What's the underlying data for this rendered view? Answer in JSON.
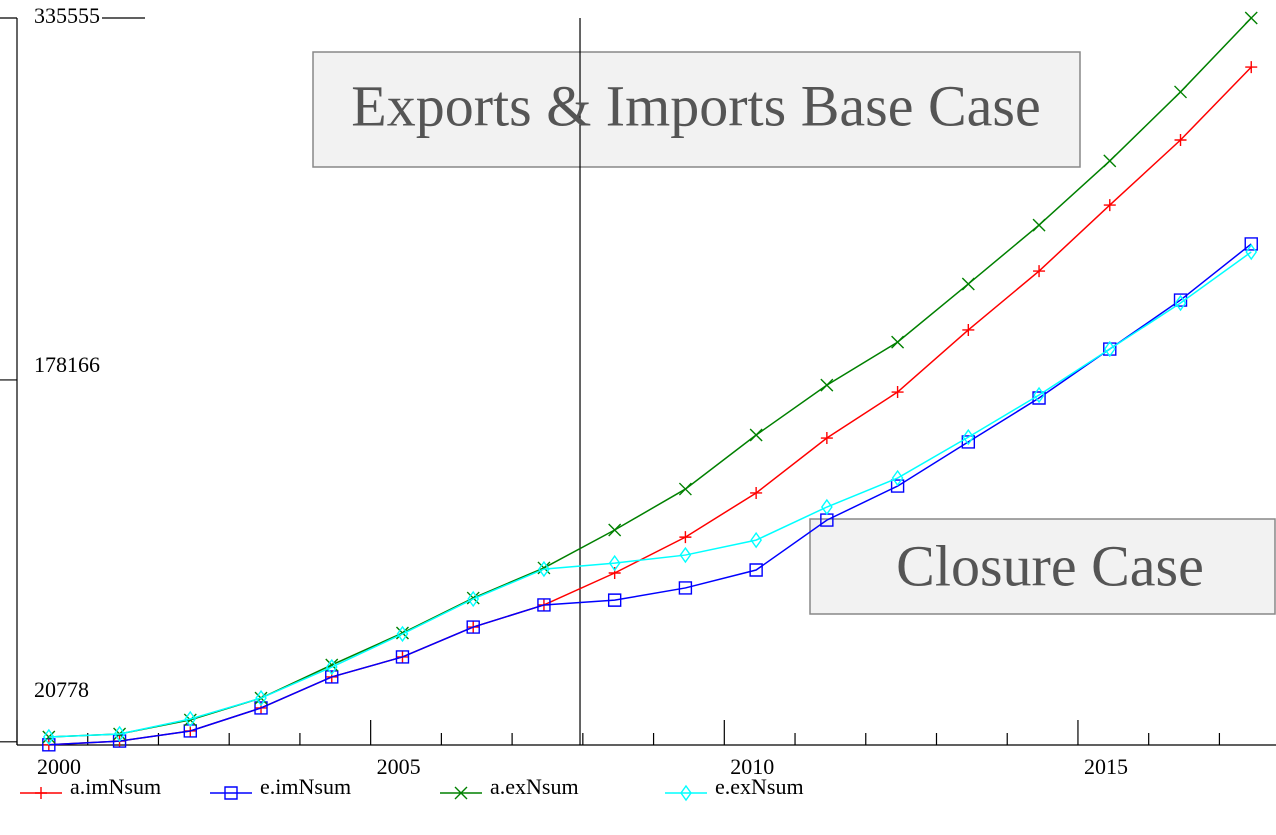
{
  "chart_data": {
    "type": "line",
    "title": "Exports & Imports Base Case",
    "annotation": "Closure Case",
    "x": [
      2000.45,
      2001.45,
      2002.45,
      2003.45,
      2004.45,
      2005.45,
      2006.45,
      2007.45,
      2008.45,
      2009.45,
      2010.45,
      2011.45,
      2012.45,
      2013.45,
      2014.45,
      2015.45,
      2016.45,
      2017.45
    ],
    "series": [
      {
        "name": "a.imNsum",
        "color": "#ff0000",
        "marker": "plus",
        "values": [
          19500,
          21100,
          25500,
          35500,
          49000,
          57700,
          70700,
          80300,
          94200,
          109800,
          129000,
          152900,
          172900,
          199900,
          225500,
          254200,
          282500,
          314200
        ]
      },
      {
        "name": "e.imNsum",
        "color": "#0000ff",
        "marker": "square",
        "values": [
          19500,
          21100,
          25500,
          35500,
          49000,
          57700,
          70700,
          80300,
          82400,
          87700,
          95500,
          117200,
          132000,
          151200,
          170300,
          191600,
          212900,
          237300
        ]
      },
      {
        "name": "a.exNsum",
        "color": "#008000",
        "marker": "cross",
        "values": [
          22900,
          24200,
          30300,
          39800,
          54200,
          68100,
          83300,
          96400,
          112900,
          130700,
          154200,
          175900,
          194600,
          219900,
          245500,
          273400,
          303400,
          335555
        ]
      },
      {
        "name": "e.exNsum",
        "color": "#00ffff",
        "marker": "diamond",
        "values": [
          22900,
          24200,
          30700,
          39800,
          53300,
          67700,
          82900,
          95900,
          98500,
          102000,
          108500,
          122900,
          135500,
          153300,
          171600,
          191600,
          211600,
          233800
        ]
      }
    ],
    "xlim": [
      2000,
      2017.8
    ],
    "xticks": [
      2000,
      2005,
      2010,
      2015
    ],
    "xminorticks": [
      2001,
      2002,
      2003,
      2004,
      2006,
      2007,
      2008,
      2009,
      2011,
      2012,
      2013,
      2014,
      2016,
      2017
    ],
    "ylim": [
      19400,
      335555
    ],
    "yticks": [
      20778,
      178166,
      335555
    ],
    "vline": 2007.96,
    "grid": false
  }
}
